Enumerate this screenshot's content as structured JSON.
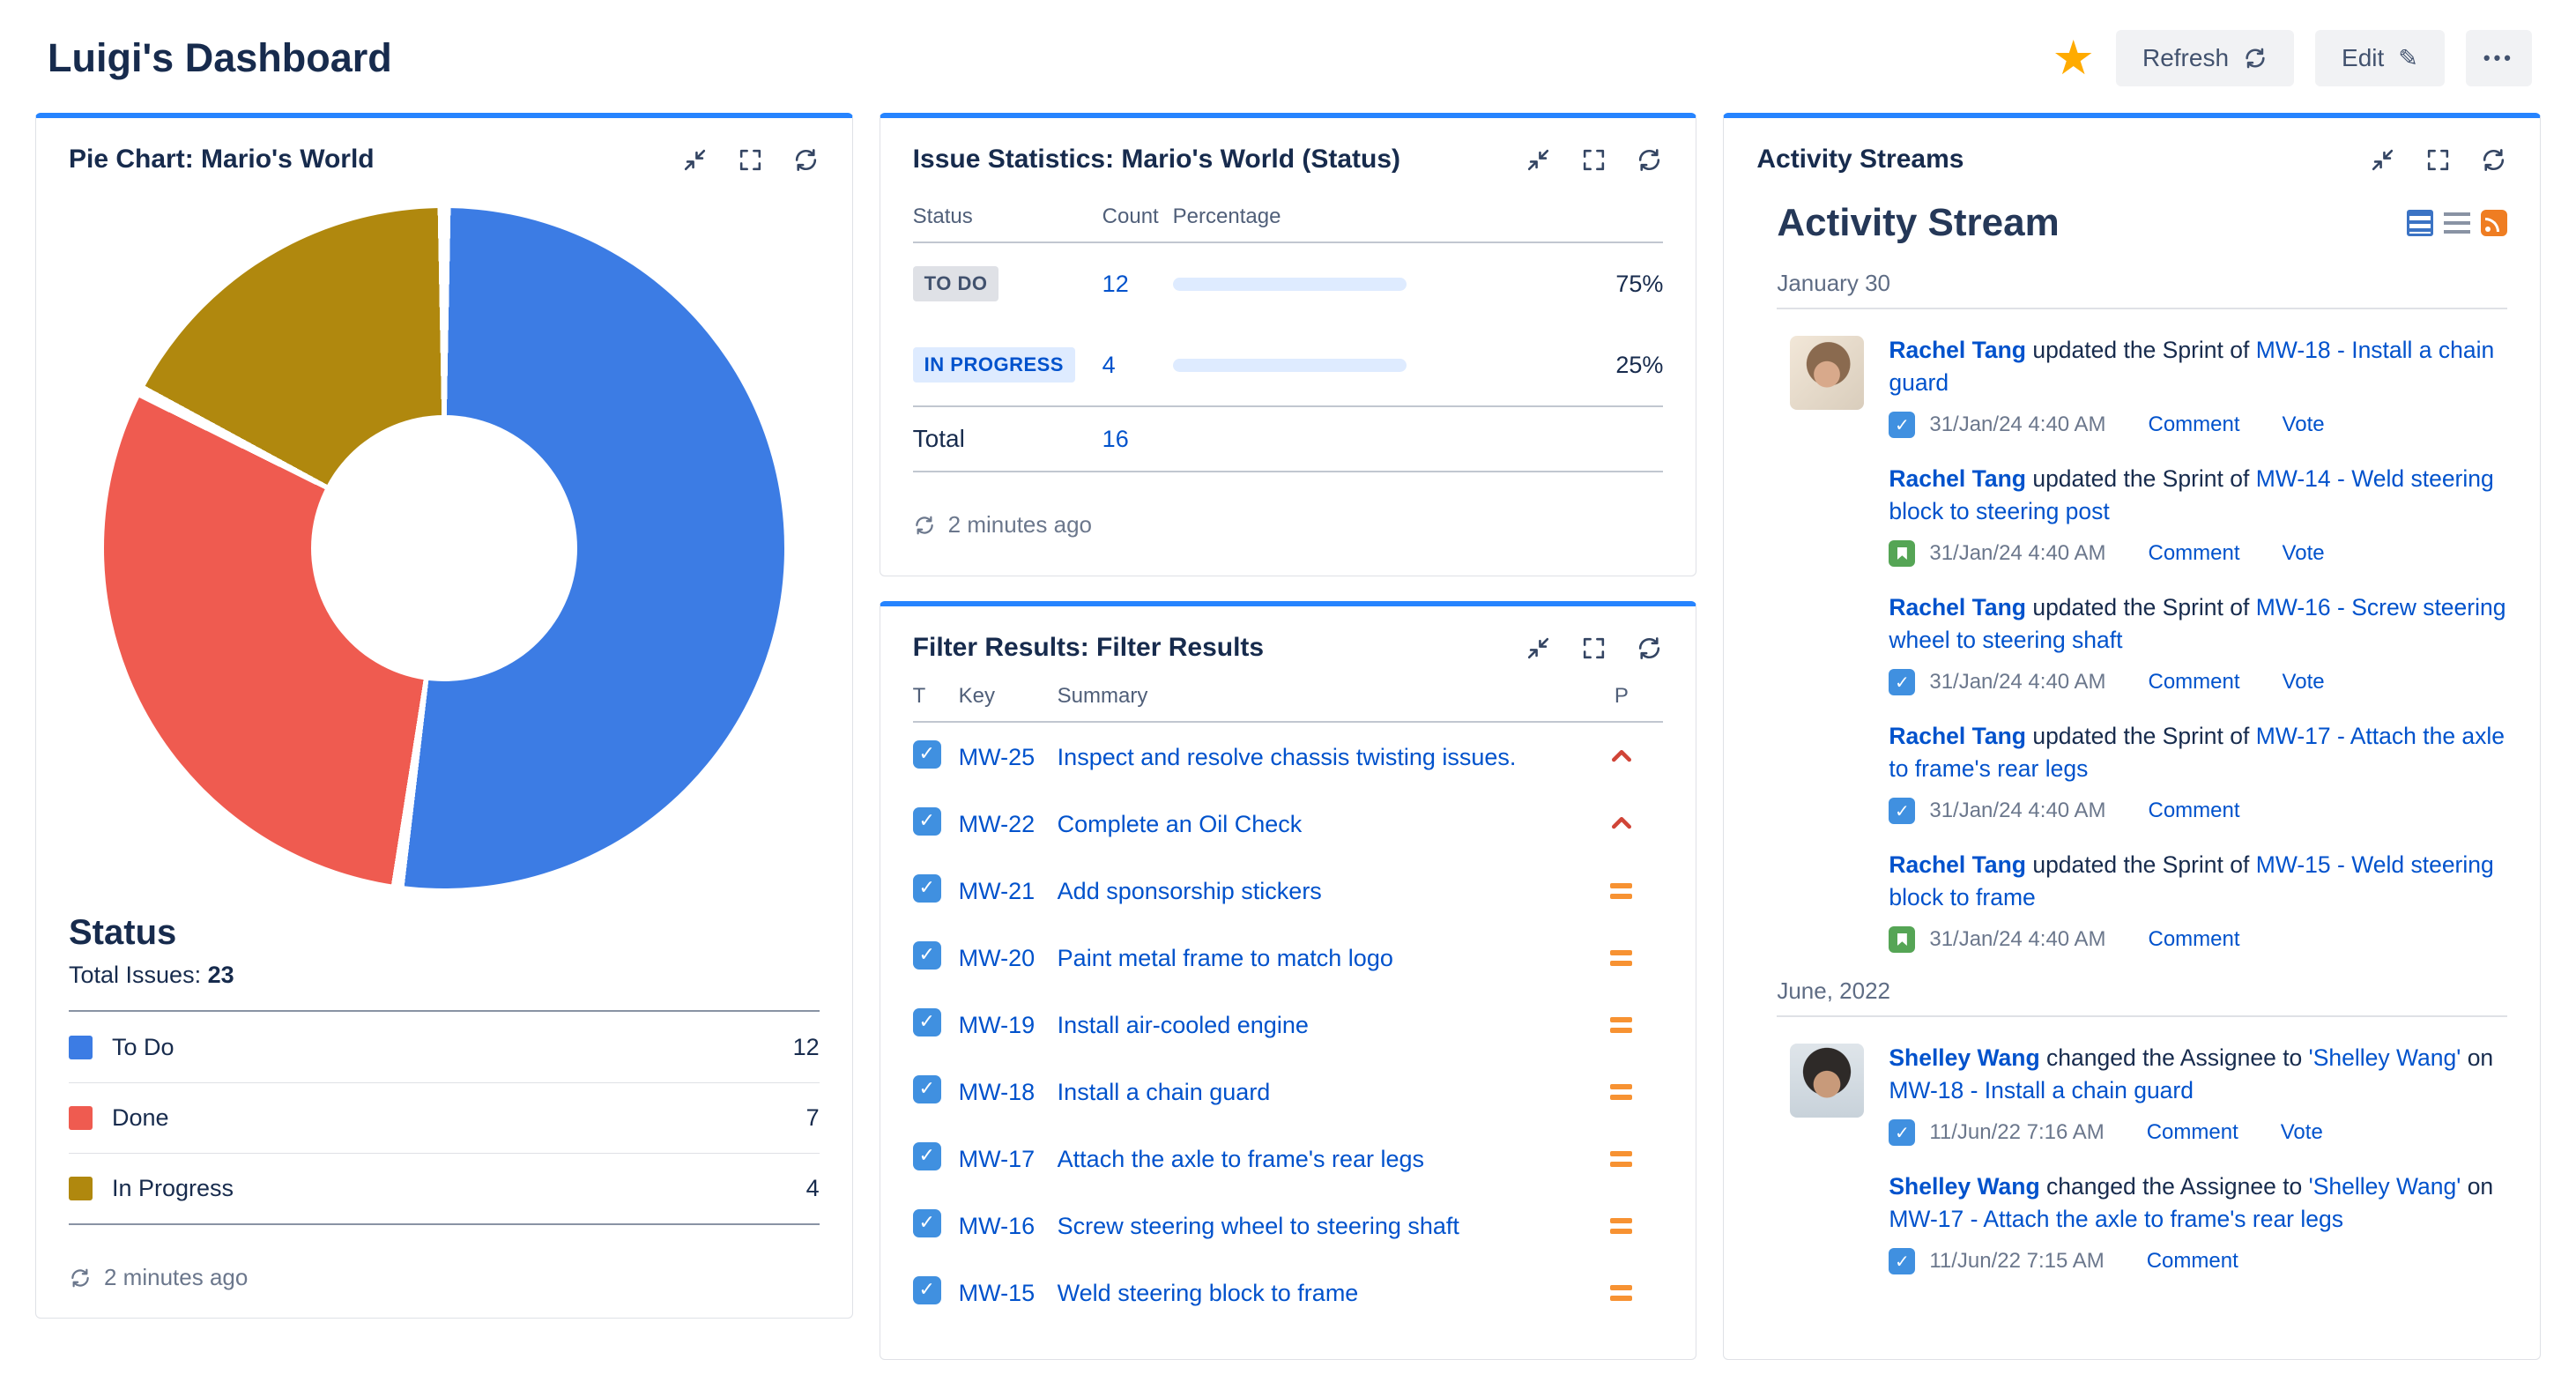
{
  "icons": {
    "star": "★",
    "edit": "✎",
    "more": "•••",
    "check": "✓",
    "refresh": "circular-arrows"
  },
  "header": {
    "title": "Luigi's Dashboard",
    "refresh_label": "Refresh",
    "edit_label": "Edit"
  },
  "pie_panel": {
    "title": "Pie Chart: Mario's World",
    "section_title": "Status",
    "total_label": "Total Issues:",
    "total_value": "23",
    "legend": [
      {
        "label": "To Do",
        "value": "12",
        "color": "#3C7CE4"
      },
      {
        "label": "Done",
        "value": "7",
        "color": "#EF5B50"
      },
      {
        "label": "In Progress",
        "value": "4",
        "color": "#B0880E"
      }
    ],
    "updated": "2 minutes ago"
  },
  "stats_panel": {
    "title": "Issue Statistics: Mario's World (Status)",
    "columns": [
      "Status",
      "Count",
      "Percentage"
    ],
    "rows": [
      {
        "status": "TO DO",
        "count": "12",
        "pct": 75,
        "pct_label": "75%",
        "badge_bg": "#DFE1E6",
        "badge_color": "#42526E"
      },
      {
        "status": "IN PROGRESS",
        "count": "4",
        "pct": 25,
        "pct_label": "25%",
        "badge_bg": "#DEEBFF",
        "badge_color": "#0052CC"
      }
    ],
    "total_label": "Total",
    "total_value": "16",
    "updated": "2 minutes ago"
  },
  "filter_panel": {
    "title": "Filter Results: Filter Results",
    "columns": {
      "type": "T",
      "key": "Key",
      "summary": "Summary",
      "priority": "P"
    },
    "rows": [
      {
        "key": "MW-25",
        "summary": "Inspect and resolve chassis twisting issues.",
        "priority": "high"
      },
      {
        "key": "MW-22",
        "summary": "Complete an Oil Check",
        "priority": "high"
      },
      {
        "key": "MW-21",
        "summary": "Add sponsorship stickers",
        "priority": "medium"
      },
      {
        "key": "MW-20",
        "summary": "Paint metal frame to match logo",
        "priority": "medium"
      },
      {
        "key": "MW-19",
        "summary": "Install air-cooled engine",
        "priority": "medium"
      },
      {
        "key": "MW-18",
        "summary": "Install a chain guard",
        "priority": "medium"
      },
      {
        "key": "MW-17",
        "summary": "Attach the axle to frame's rear legs",
        "priority": "medium"
      },
      {
        "key": "MW-16",
        "summary": "Screw steering wheel to steering shaft",
        "priority": "medium"
      },
      {
        "key": "MW-15",
        "summary": "Weld steering block to frame",
        "priority": "medium"
      }
    ]
  },
  "activity_panel": {
    "title": "Activity Streams",
    "stream_title": "Activity Stream",
    "groups": [
      {
        "date": "January 30"
      },
      {
        "date": "June, 2022"
      }
    ],
    "items": [
      {
        "user": "Rachel Tang",
        "action": "updated the Sprint of",
        "issue": "MW-18 - Install a chain guard",
        "icon": "task",
        "time": "31/Jan/24 4:40 AM",
        "comment": "Comment",
        "vote": "Vote"
      },
      {
        "user": "Rachel Tang",
        "action": "updated the Sprint of",
        "issue": "MW-14 - Weld steering block to steering post",
        "icon": "story",
        "time": "31/Jan/24 4:40 AM",
        "comment": "Comment",
        "vote": "Vote"
      },
      {
        "user": "Rachel Tang",
        "action": "updated the Sprint of",
        "issue": "MW-16 - Screw steering wheel to steering shaft",
        "icon": "task",
        "time": "31/Jan/24 4:40 AM",
        "comment": "Comment",
        "vote": "Vote"
      },
      {
        "user": "Rachel Tang",
        "action": "updated the Sprint of",
        "issue": "MW-17 - Attach the axle to frame's rear legs",
        "icon": "task",
        "time": "31/Jan/24 4:40 AM",
        "comment": "Comment"
      },
      {
        "user": "Rachel Tang",
        "action": "updated the Sprint of",
        "issue": "MW-15 - Weld steering block to frame",
        "icon": "story",
        "time": "31/Jan/24 4:40 AM",
        "comment": "Comment"
      },
      {
        "user": "Shelley Wang",
        "action": "changed the Assignee to",
        "target": "'Shelley Wang'",
        "action2": "on",
        "issue": "MW-18 - Install a chain guard",
        "icon": "task",
        "time": "11/Jun/22 7:16 AM",
        "comment": "Comment",
        "vote": "Vote"
      },
      {
        "user": "Shelley Wang",
        "action": "changed the Assignee to",
        "target": "'Shelley Wang'",
        "action2": "on",
        "issue": "MW-17 - Attach the axle to frame's rear legs",
        "icon": "task",
        "time": "11/Jun/22 7:15 AM",
        "comment": "Comment"
      }
    ]
  },
  "chart_data": [
    {
      "type": "pie",
      "title": "Pie Chart: Mario's World — Status",
      "categories": [
        "To Do",
        "Done",
        "In Progress"
      ],
      "values": [
        12,
        7,
        4
      ],
      "colors": [
        "#3C7CE4",
        "#EF5B50",
        "#B0880E"
      ],
      "total": 23,
      "donut": true,
      "legend_position": "bottom"
    },
    {
      "type": "bar",
      "title": "Issue Statistics: Mario's World (Status)",
      "categories": [
        "TO DO",
        "IN PROGRESS"
      ],
      "values": [
        75,
        25
      ],
      "counts": [
        12,
        4
      ],
      "total_count": 16,
      "xlabel": "Percentage",
      "orientation": "horizontal",
      "xlim": [
        0,
        100
      ]
    }
  ]
}
